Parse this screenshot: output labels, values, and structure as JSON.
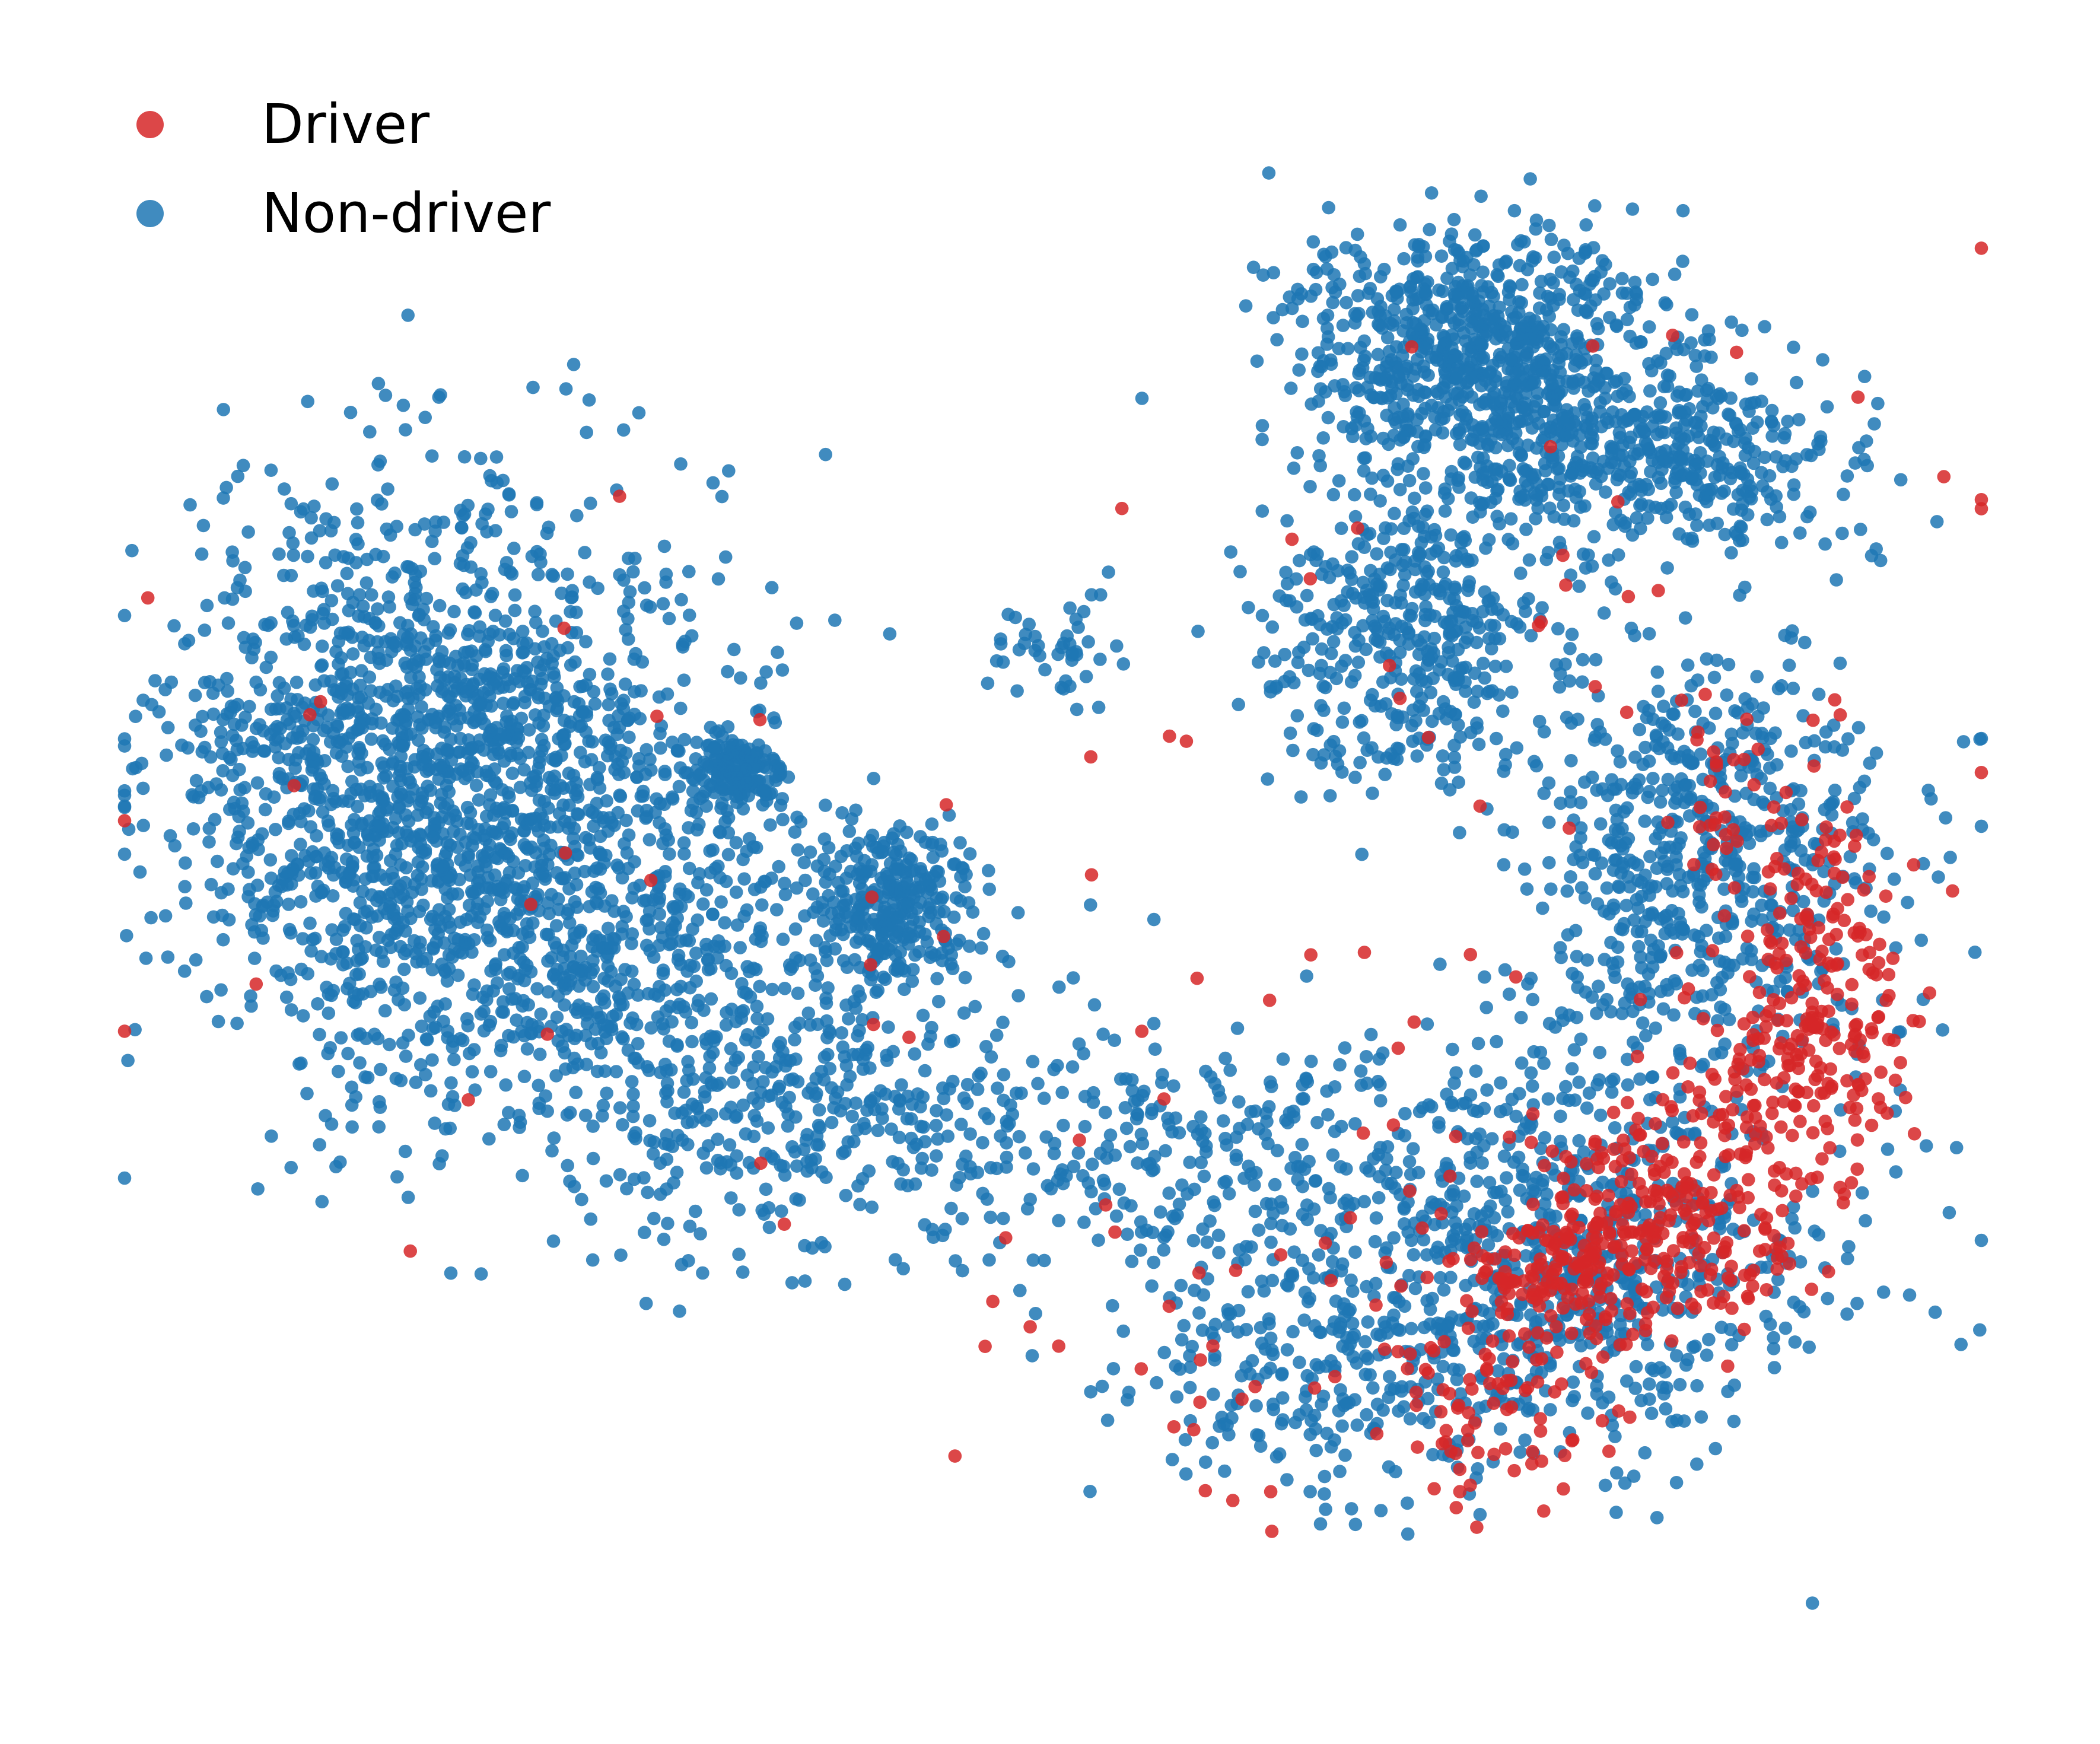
{
  "chart_data": {
    "type": "scatter",
    "title": "",
    "xlabel": "",
    "ylabel": "",
    "axes_visible": false,
    "grid": false,
    "legend_position": "top-left",
    "series": [
      {
        "name": "Driver",
        "color": "#d62728",
        "clusters": [
          {
            "x": 0.83,
            "y": 0.28,
            "sx": 0.04,
            "sy": 0.035,
            "n": 260
          },
          {
            "x": 0.77,
            "y": 0.24,
            "sx": 0.03,
            "sy": 0.02,
            "n": 120
          },
          {
            "x": 0.91,
            "y": 0.43,
            "sx": 0.025,
            "sy": 0.06,
            "n": 170
          },
          {
            "x": 0.89,
            "y": 0.37,
            "sx": 0.03,
            "sy": 0.03,
            "n": 90
          },
          {
            "x": 0.74,
            "y": 0.16,
            "sx": 0.03,
            "sy": 0.03,
            "n": 80
          },
          {
            "x": 0.86,
            "y": 0.55,
            "sx": 0.015,
            "sy": 0.03,
            "n": 30
          },
          {
            "x": 0.6,
            "y": 0.22,
            "sx": 0.1,
            "sy": 0.08,
            "n": 45
          },
          {
            "x": 0.73,
            "y": 0.65,
            "sx": 0.15,
            "sy": 0.15,
            "n": 45
          },
          {
            "x": 0.25,
            "y": 0.5,
            "sx": 0.18,
            "sy": 0.15,
            "n": 25
          }
        ]
      },
      {
        "name": "Non-driver",
        "color": "#1f77b4",
        "clusters": [
          {
            "x": 0.17,
            "y": 0.57,
            "sx": 0.07,
            "sy": 0.09,
            "n": 1700
          },
          {
            "x": 0.28,
            "y": 0.44,
            "sx": 0.08,
            "sy": 0.08,
            "n": 700
          },
          {
            "x": 0.33,
            "y": 0.57,
            "sx": 0.012,
            "sy": 0.012,
            "n": 160
          },
          {
            "x": 0.41,
            "y": 0.48,
            "sx": 0.02,
            "sy": 0.025,
            "n": 260
          },
          {
            "x": 0.38,
            "y": 0.35,
            "sx": 0.06,
            "sy": 0.04,
            "n": 180
          },
          {
            "x": 0.73,
            "y": 0.84,
            "sx": 0.05,
            "sy": 0.04,
            "n": 800
          },
          {
            "x": 0.82,
            "y": 0.77,
            "sx": 0.06,
            "sy": 0.03,
            "n": 450
          },
          {
            "x": 0.69,
            "y": 0.66,
            "sx": 0.04,
            "sy": 0.05,
            "n": 450
          },
          {
            "x": 0.85,
            "y": 0.51,
            "sx": 0.05,
            "sy": 0.07,
            "n": 650
          },
          {
            "x": 0.78,
            "y": 0.25,
            "sx": 0.07,
            "sy": 0.06,
            "n": 650
          },
          {
            "x": 0.65,
            "y": 0.18,
            "sx": 0.06,
            "sy": 0.04,
            "n": 250
          },
          {
            "x": 0.58,
            "y": 0.32,
            "sx": 0.12,
            "sy": 0.04,
            "n": 420
          },
          {
            "x": 0.5,
            "y": 0.65,
            "sx": 0.02,
            "sy": 0.02,
            "n": 45
          }
        ]
      }
    ],
    "point_radius_frac": 0.0032,
    "alpha": 0.85
  }
}
